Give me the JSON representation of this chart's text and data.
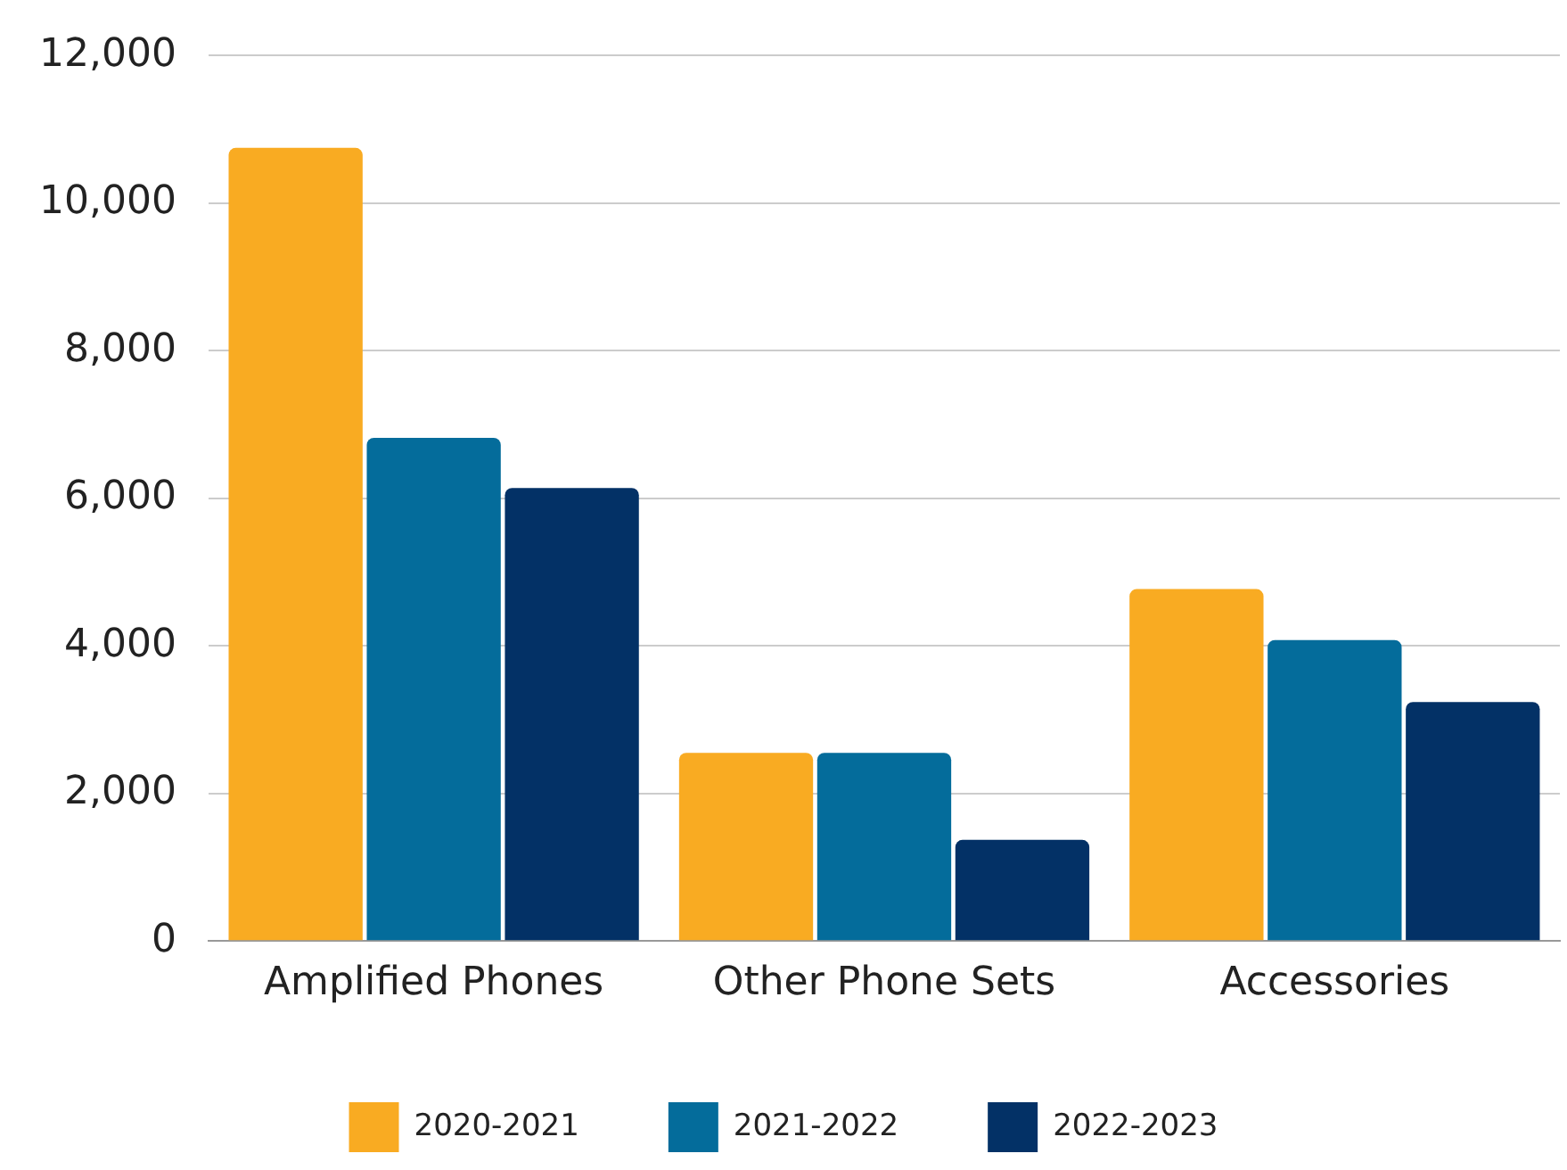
{
  "chart_data": {
    "type": "bar",
    "categories": [
      "Amplified Phones",
      "Other Phone Sets",
      "Accessories"
    ],
    "series": [
      {
        "name": "2020-2021",
        "color": "#f9ab22",
        "values": [
          10750,
          2550,
          4770
        ]
      },
      {
        "name": "2021-2022",
        "color": "#046c9b",
        "values": [
          6820,
          2550,
          4080
        ]
      },
      {
        "name": "2022-2023",
        "color": "#033166",
        "values": [
          6140,
          1370,
          3240
        ]
      }
    ],
    "ylim": [
      0,
      12000
    ],
    "yticks": [
      {
        "value": 0,
        "label": "0"
      },
      {
        "value": 2000,
        "label": "2,000"
      },
      {
        "value": 4000,
        "label": "4,000"
      },
      {
        "value": 6000,
        "label": "6,000"
      },
      {
        "value": 8000,
        "label": "8,000"
      },
      {
        "value": 10000,
        "label": "10,000"
      },
      {
        "value": 12000,
        "label": "12,000"
      }
    ],
    "grid": "y",
    "legend": "bottom"
  }
}
